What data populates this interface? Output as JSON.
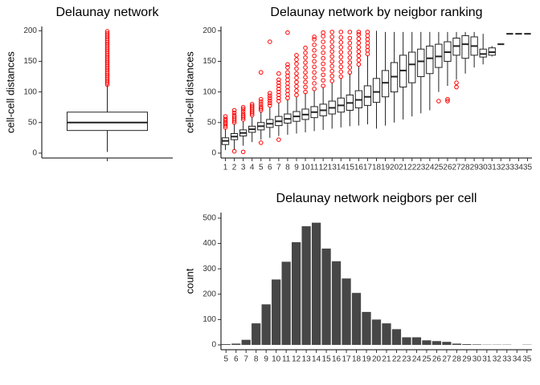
{
  "chart_data": [
    {
      "type": "box",
      "title": "Delaunay network",
      "ylabel": "cell-cell distances",
      "categories": [
        null
      ],
      "boxes": [
        {
          "low": 2,
          "q1": 37,
          "median": 50,
          "q3": 67,
          "high": 112,
          "outliers": [
            112,
            115,
            118,
            121,
            124,
            127,
            130,
            133,
            136,
            139,
            142,
            145,
            148,
            151,
            154,
            157,
            160,
            163,
            166,
            169,
            172,
            175,
            178,
            181,
            184,
            187,
            190,
            193,
            196,
            199
          ]
        }
      ],
      "ylim": [
        -8,
        207
      ],
      "yticks": [
        0,
        50,
        100,
        150,
        200
      ],
      "box_color": "#222222",
      "outlier_color": "#ff0000"
    },
    {
      "type": "box",
      "title": "Delaunay network by neigbor ranking",
      "ylabel": "cell-cell distances",
      "categories": [
        "1",
        "2",
        "3",
        "4",
        "5",
        "6",
        "7",
        "8",
        "9",
        "10",
        "11",
        "12",
        "13",
        "14",
        "15",
        "16",
        "17",
        "18",
        "19",
        "20",
        "21",
        "22",
        "23",
        "24",
        "25",
        "26",
        "27",
        "28",
        "29",
        "30",
        "31",
        "32",
        "33",
        "34",
        "35"
      ],
      "boxes": [
        {
          "low": 5,
          "q1": 14,
          "median": 20,
          "q3": 25,
          "high": 40,
          "outliers": [
            42,
            45,
            48,
            50,
            53,
            56,
            60
          ]
        },
        {
          "low": 5,
          "q1": 22,
          "median": 27,
          "q3": 32,
          "high": 48,
          "outliers": [
            3,
            50,
            53,
            56,
            59,
            62,
            66,
            70
          ]
        },
        {
          "low": 12,
          "q1": 28,
          "median": 33,
          "q3": 38,
          "high": 52,
          "outliers": [
            2,
            55,
            58,
            61,
            64,
            68,
            72,
            75
          ]
        },
        {
          "low": 18,
          "q1": 34,
          "median": 39,
          "q3": 44,
          "high": 60,
          "outliers": [
            62,
            65,
            68,
            71,
            74,
            77,
            80
          ]
        },
        {
          "low": 22,
          "q1": 38,
          "median": 44,
          "q3": 50,
          "high": 68,
          "outliers": [
            17,
            70,
            73,
            76,
            80,
            84,
            88,
            132
          ]
        },
        {
          "low": 25,
          "q1": 42,
          "median": 48,
          "q3": 55,
          "high": 75,
          "outliers": [
            78,
            82,
            86,
            90,
            94,
            98,
            182
          ]
        },
        {
          "low": 28,
          "q1": 45,
          "median": 52,
          "q3": 60,
          "high": 82,
          "outliers": [
            22,
            85,
            90,
            95,
            100,
            105,
            110,
            115,
            120,
            130
          ]
        },
        {
          "low": 30,
          "q1": 49,
          "median": 56,
          "q3": 64,
          "high": 88,
          "outliers": [
            90,
            96,
            102,
            108,
            114,
            120,
            126,
            132,
            140,
            145,
            197
          ]
        },
        {
          "low": 32,
          "q1": 52,
          "median": 60,
          "q3": 68,
          "high": 92,
          "outliers": [
            95,
            102,
            109,
            116,
            123,
            130,
            138,
            146,
            153,
            160
          ]
        },
        {
          "low": 34,
          "q1": 55,
          "median": 63,
          "q3": 72,
          "high": 98,
          "outliers": [
            100,
            108,
            116,
            124,
            132,
            140,
            148,
            156,
            164,
            172
          ]
        },
        {
          "low": 36,
          "q1": 58,
          "median": 67,
          "q3": 76,
          "high": 102,
          "outliers": [
            105,
            114,
            123,
            132,
            141,
            150,
            159,
            168,
            177,
            186,
            190
          ]
        },
        {
          "low": 38,
          "q1": 61,
          "median": 70,
          "q3": 80,
          "high": 108,
          "outliers": [
            110,
            119,
            128,
            137,
            146,
            155,
            164,
            173,
            182,
            191,
            197
          ]
        },
        {
          "low": 40,
          "q1": 64,
          "median": 74,
          "q3": 85,
          "high": 115,
          "outliers": [
            118,
            126,
            134,
            142,
            150,
            158,
            166,
            174,
            182,
            190,
            198
          ]
        },
        {
          "low": 42,
          "q1": 67,
          "median": 78,
          "q3": 90,
          "high": 122,
          "outliers": [
            125,
            133,
            141,
            149,
            157,
            165,
            173,
            181,
            189,
            198
          ]
        },
        {
          "low": 44,
          "q1": 70,
          "median": 82,
          "q3": 95,
          "high": 130,
          "outliers": [
            132,
            140,
            148,
            156,
            164,
            172,
            180,
            188,
            198
          ]
        },
        {
          "low": 45,
          "q1": 74,
          "median": 87,
          "q3": 102,
          "high": 142,
          "outliers": [
            145,
            152,
            159,
            166,
            173,
            180,
            187,
            194,
            198
          ]
        },
        {
          "low": 47,
          "q1": 78,
          "median": 92,
          "q3": 110,
          "high": 160,
          "outliers": [
            162,
            168,
            174,
            180,
            186,
            192,
            198
          ]
        },
        {
          "low": 40,
          "q1": 83,
          "median": 100,
          "q3": 122,
          "high": 200,
          "outliers": []
        },
        {
          "low": 45,
          "q1": 92,
          "median": 115,
          "q3": 135,
          "high": 198,
          "outliers": []
        },
        {
          "low": 50,
          "q1": 100,
          "median": 125,
          "q3": 148,
          "high": 198,
          "outliers": []
        },
        {
          "low": 55,
          "q1": 108,
          "median": 135,
          "q3": 160,
          "high": 198,
          "outliers": []
        },
        {
          "low": 60,
          "q1": 115,
          "median": 145,
          "q3": 165,
          "high": 198,
          "outliers": []
        },
        {
          "low": 65,
          "q1": 125,
          "median": 150,
          "q3": 170,
          "high": 198,
          "outliers": []
        },
        {
          "low": 70,
          "q1": 130,
          "median": 155,
          "q3": 175,
          "high": 198,
          "outliers": []
        },
        {
          "low": 100,
          "q1": 140,
          "median": 158,
          "q3": 178,
          "high": 198,
          "outliers": [
            85
          ]
        },
        {
          "low": 110,
          "q1": 150,
          "median": 165,
          "q3": 182,
          "high": 198,
          "outliers": [
            85,
            88
          ]
        },
        {
          "low": 120,
          "q1": 160,
          "median": 175,
          "q3": 188,
          "high": 198,
          "outliers": [
            108,
            115
          ]
        },
        {
          "low": 130,
          "q1": 155,
          "median": 178,
          "q3": 192,
          "high": 198,
          "outliers": []
        },
        {
          "low": 140,
          "q1": 160,
          "median": 175,
          "q3": 190,
          "high": 198,
          "outliers": []
        },
        {
          "low": 145,
          "q1": 157,
          "median": 162,
          "q3": 170,
          "high": 195,
          "outliers": []
        },
        {
          "low": 158,
          "q1": 160,
          "median": 165,
          "q3": 172,
          "high": 175,
          "outliers": []
        },
        {
          "low": 178,
          "q1": 178,
          "median": 178,
          "q3": 178,
          "high": 178,
          "outliers": []
        },
        {
          "low": 195,
          "q1": 195,
          "median": 195,
          "q3": 195,
          "high": 195,
          "outliers": []
        },
        {
          "low": 195,
          "q1": 195,
          "median": 195,
          "q3": 195,
          "high": 195,
          "outliers": []
        },
        {
          "low": 195,
          "q1": 195,
          "median": 195,
          "q3": 195,
          "high": 195,
          "outliers": []
        }
      ],
      "ylim": [
        -8,
        207
      ],
      "yticks": [
        0,
        50,
        100,
        150,
        200
      ],
      "box_color": "#222222",
      "outlier_color": "#ff0000"
    },
    {
      "type": "bar",
      "title": "Delaunay network neigbors per cell",
      "ylabel": "count",
      "categories": [
        "5",
        "6",
        "7",
        "8",
        "9",
        "10",
        "11",
        "12",
        "13",
        "14",
        "15",
        "16",
        "17",
        "18",
        "19",
        "20",
        "21",
        "22",
        "23",
        "24",
        "25",
        "26",
        "27",
        "28",
        "29",
        "30",
        "31",
        "32",
        "33",
        "34",
        "35"
      ],
      "values": [
        3,
        5,
        20,
        85,
        160,
        258,
        328,
        405,
        468,
        482,
        380,
        330,
        262,
        205,
        130,
        100,
        85,
        62,
        30,
        30,
        18,
        15,
        12,
        5,
        3,
        2,
        1,
        1,
        1,
        0,
        1
      ],
      "ylim": [
        -19,
        522
      ],
      "yticks": [
        0,
        100,
        200,
        300,
        400,
        500
      ],
      "color": "#474747"
    }
  ]
}
